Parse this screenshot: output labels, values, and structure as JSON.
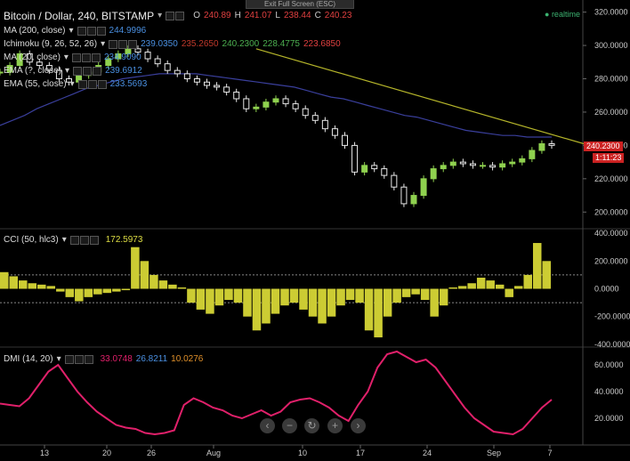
{
  "window": {
    "exit_fullscreen": "Exit Full Screen (ESC)",
    "realtime": "realtime"
  },
  "colors": {
    "up": "#8fd14f",
    "down": "#e8e8e8",
    "trendline": "#b5b52a",
    "ema_blue": "#3a3f9c",
    "cci": "#cccc33",
    "dmi": "#e0206a",
    "price_tag": "#cc2222",
    "text_red": "#e04040",
    "text_blue": "#4a8fe0",
    "text_green": "#4caf50",
    "text_orange": "#e0902a"
  },
  "header": {
    "symbol": "Bitcoin / Dollar, 240, BITSTAMP",
    "o_label": "O",
    "o_value": "240.89",
    "h_label": "H",
    "h_value": "241.07",
    "l_label": "L",
    "l_value": "238.44",
    "c_label": "C",
    "c_value": "240.23"
  },
  "indicators": [
    {
      "name": "MA (200, close)",
      "values": [
        "244.9996"
      ]
    },
    {
      "name": "Ichimoku (9, 26, 52, 26)",
      "values": [
        "239.0350",
        "235.2650",
        "240.2300",
        "228.4775",
        "223.6850"
      ]
    },
    {
      "name": "MA (20, close)",
      "values": [
        "234.9090"
      ]
    },
    {
      "name": "EMA (?, close)",
      "values": [
        "239.6912"
      ]
    },
    {
      "name": "EMA (55, close)",
      "values": [
        "233.5693"
      ]
    }
  ],
  "cci_header": {
    "name": "CCI (50, hlc3)",
    "value": "172.5973"
  },
  "dmi_header": {
    "name": "DMI (14, 20)",
    "values": [
      "33.0748",
      "26.8211",
      "10.0276"
    ]
  },
  "price_tags": {
    "last": "240.2300",
    "timer": "1:11:23"
  },
  "nav_buttons": [
    "‹",
    "−",
    "↻",
    "+",
    "›"
  ],
  "chart_data": [
    {
      "type": "line",
      "title": "Bitcoin / Dollar, 240, BITSTAMP",
      "x_ticks": [
        "13",
        "20",
        "26",
        "Aug",
        "10",
        "17",
        "24",
        "Sep",
        "7"
      ],
      "y_ticks": [
        "320.0000",
        "300.0000",
        "280.0000",
        "260.0000",
        "240.0000",
        "220.0000",
        "200.0000"
      ],
      "ylim": [
        190,
        323
      ],
      "series": [
        {
          "name": "close",
          "values": [
            284,
            288,
            295,
            290,
            288,
            285,
            280,
            278,
            282,
            284,
            288,
            292,
            295,
            298,
            296,
            292,
            289,
            285,
            283,
            280,
            278,
            276,
            275,
            272,
            268,
            262,
            263,
            266,
            268,
            265,
            262,
            258,
            255,
            250,
            246,
            240,
            224,
            228,
            226,
            222,
            215,
            205,
            210,
            220,
            226,
            228,
            230,
            229,
            228,
            228,
            227,
            229,
            230,
            232,
            237,
            241,
            240
          ]
        },
        {
          "name": "MA (200, close)",
          "values": [
            252,
            255,
            258,
            262,
            265,
            268,
            271,
            274,
            276,
            278,
            280,
            281,
            282,
            283,
            283,
            283,
            283,
            282,
            281,
            280,
            279,
            278,
            277,
            276,
            275,
            273,
            271,
            269,
            268,
            266,
            264,
            262,
            260,
            258,
            257,
            255,
            253,
            251,
            249,
            248,
            247,
            246,
            246,
            245,
            245,
            245
          ]
        }
      ],
      "trendline": {
        "from": [
          26,
          298
        ],
        "to": [
          61,
          238
        ]
      }
    },
    {
      "type": "bar",
      "title": "CCI (50, hlc3)",
      "y_ticks": [
        "400.0000",
        "200.0000",
        "0.0000",
        "-200.0000",
        "-400.0000"
      ],
      "ylim": [
        -420,
        420
      ],
      "levels": [
        100,
        -100
      ]
    },
    {
      "type": "line",
      "title": "DMI (14, 20)",
      "y_ticks": [
        "60.0000",
        "40.0000",
        "20.0000"
      ],
      "ylim": [
        0,
        72
      ],
      "series": [
        {
          "name": "ADX",
          "values": [
            31,
            30,
            29,
            35,
            45,
            55,
            60,
            50,
            40,
            32,
            25,
            20,
            15,
            13,
            12,
            9,
            8,
            9,
            11,
            30,
            35,
            32,
            28,
            26,
            22,
            20,
            23,
            26,
            22,
            25,
            32,
            34,
            35,
            32,
            28,
            22,
            18,
            30,
            40,
            58,
            68,
            70,
            66,
            62,
            64,
            58,
            48,
            38,
            28,
            20,
            15,
            10,
            9,
            8,
            12,
            20,
            28,
            34
          ]
        }
      ]
    }
  ]
}
